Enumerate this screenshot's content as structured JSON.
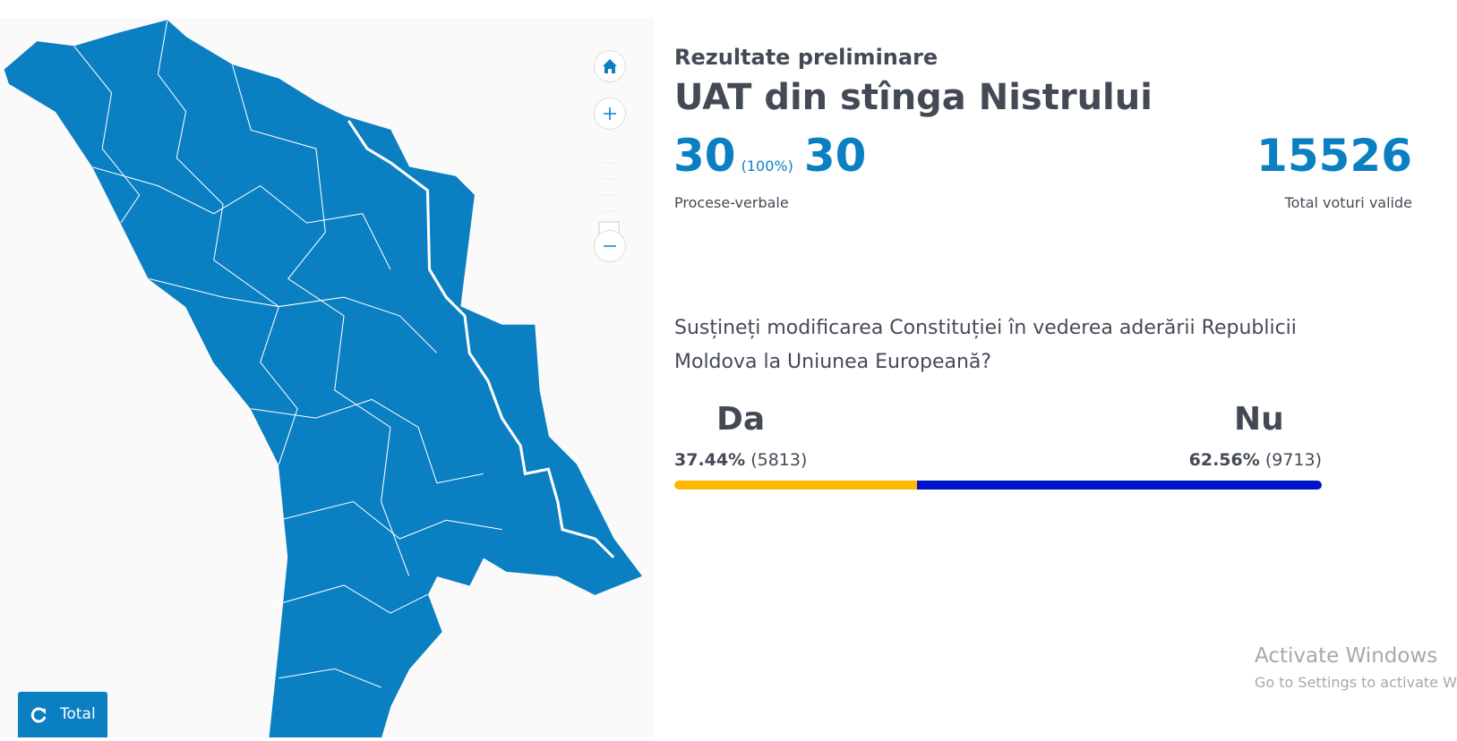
{
  "header": {
    "subtitle": "Rezultate preliminare",
    "title": "UAT din stînga Nistrului"
  },
  "stats": {
    "processed": 30,
    "processed_share": "(100%)",
    "total_reports": 30,
    "reports_label": "Procese-verbale",
    "valid_votes": 15526,
    "valid_votes_label": "Total voturi valide"
  },
  "question": "Susțineți modificarea Constituției în vederea aderării Republicii Moldova la Uniunea Europeană?",
  "options": [
    {
      "name": "Da",
      "share": 37.44,
      "share_label": "37.44%",
      "votes_label": "(5813)",
      "color": "#ffb900"
    },
    {
      "name": "Nu",
      "share": 62.56,
      "share_label": "62.56%",
      "votes_label": "(9713)",
      "color": "#0014c8"
    }
  ],
  "map_button": "Total",
  "watermark": {
    "title": "Activate Windows",
    "subtitle": "Go to Settings to activate Windows."
  }
}
